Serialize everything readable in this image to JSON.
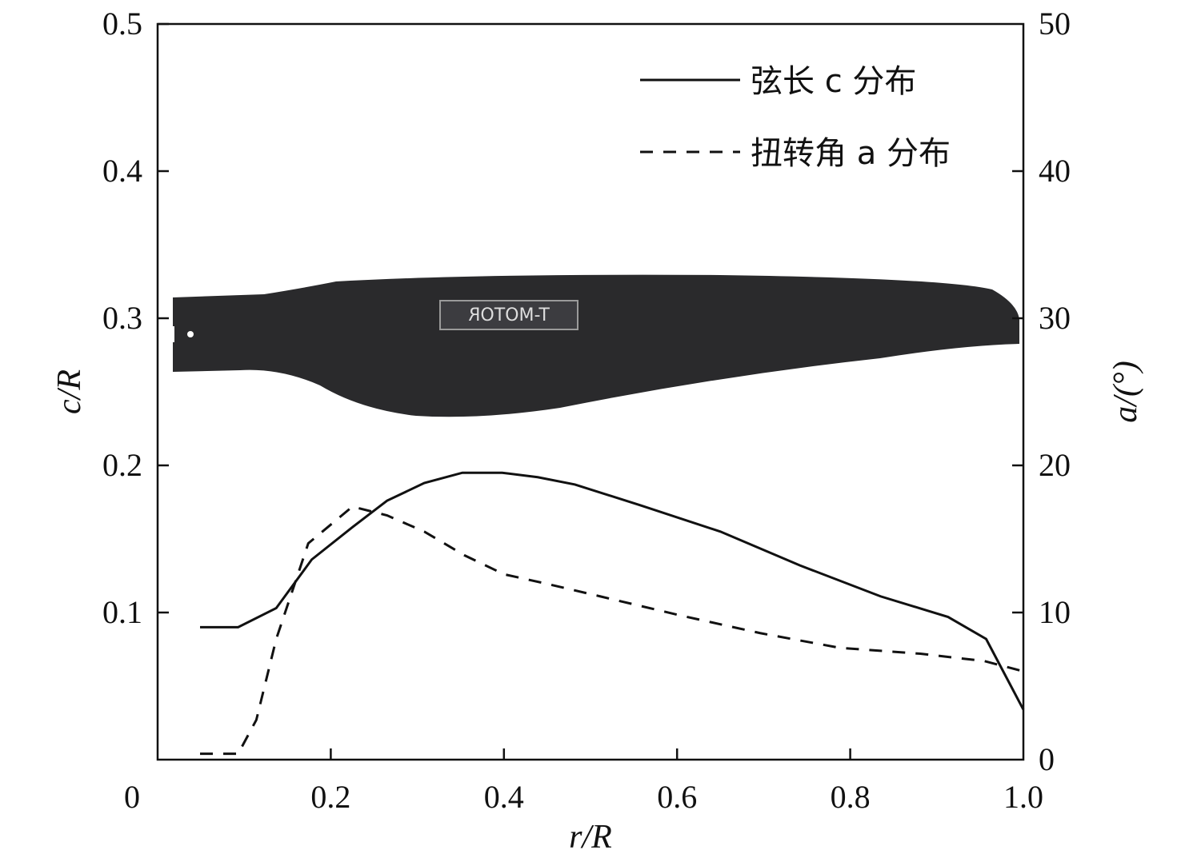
{
  "chart_data": {
    "type": "line",
    "xlabel": "r/R",
    "ylabel": "c/R",
    "y2label": "a/(°)",
    "xlim": [
      0,
      1.0
    ],
    "ylim": [
      0,
      0.5
    ],
    "y2lim": [
      0,
      50
    ],
    "xticks": [
      "0",
      "0.2",
      "0.4",
      "0.6",
      "0.8",
      "1.0"
    ],
    "yticks": [
      "0.1",
      "0.2",
      "0.3",
      "0.4",
      "0.5"
    ],
    "y2ticks": [
      "0",
      "10",
      "20",
      "30",
      "40",
      "50"
    ],
    "grid": false,
    "legend_position": "top-right",
    "background_image": "propeller-blade",
    "logo_text": "T-MOTOR",
    "series": [
      {
        "name": "弦长 c 分布",
        "axis": "left",
        "style": "solid",
        "x": [
          0.049,
          0.093,
          0.137,
          0.178,
          0.225,
          0.265,
          0.308,
          0.352,
          0.398,
          0.439,
          0.482,
          0.557,
          0.65,
          0.742,
          0.835,
          0.913,
          0.957,
          1.0
        ],
        "y": [
          0.09,
          0.09,
          0.103,
          0.136,
          0.158,
          0.176,
          0.188,
          0.195,
          0.195,
          0.192,
          0.187,
          0.173,
          0.155,
          0.132,
          0.111,
          0.097,
          0.082,
          0.034
        ]
      },
      {
        "name": "扭转角 a 分布",
        "axis": "right",
        "style": "dashed",
        "x": [
          0.049,
          0.093,
          0.114,
          0.137,
          0.174,
          0.225,
          0.265,
          0.308,
          0.354,
          0.4,
          0.446,
          0.511,
          0.604,
          0.696,
          0.788,
          0.881,
          0.955,
          1.0
        ],
        "y": [
          0.4,
          0.4,
          2.7,
          8.2,
          14.7,
          17.2,
          16.6,
          15.5,
          13.9,
          12.6,
          12.0,
          11.1,
          9.8,
          8.6,
          7.6,
          7.2,
          6.7,
          6.0
        ]
      }
    ]
  }
}
